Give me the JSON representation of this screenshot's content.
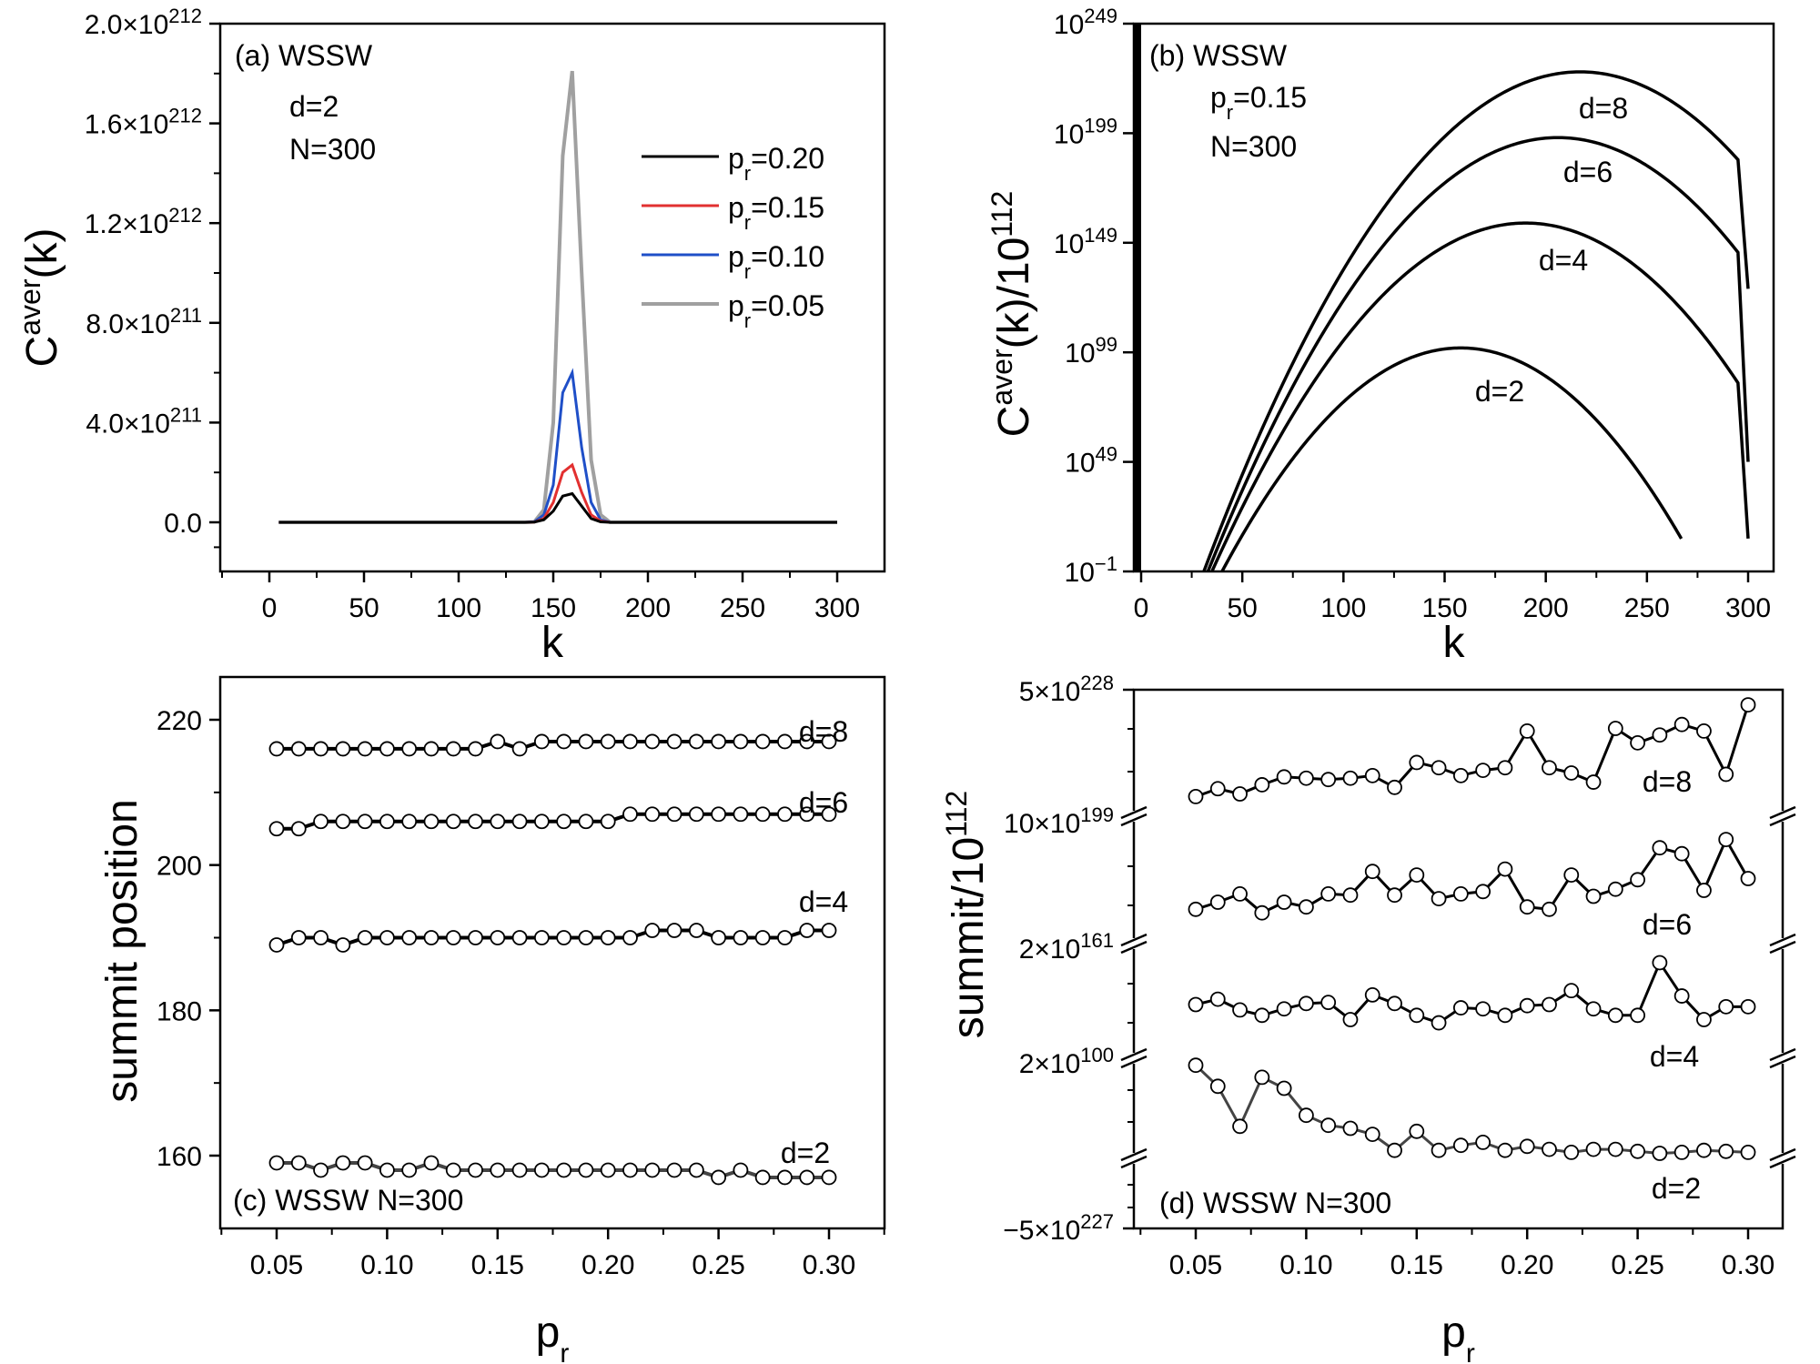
{
  "chart_data": [
    {
      "id": "a",
      "type": "line",
      "panel_label": "(a) WSSW",
      "annotations": [
        "d=2",
        "N=300"
      ],
      "xlabel": "k",
      "ylabel_main": "C",
      "ylabel_sup": "aver",
      "ylabel_tail": "(k)",
      "xlim": [
        -22,
        325
      ],
      "ylim": [
        -2e+211,
        2e+212
      ],
      "x_ticks": [
        0,
        50,
        100,
        150,
        200,
        250,
        300
      ],
      "y_ticks": [
        {
          "value": 0,
          "mantissa": "0.0",
          "exp": ""
        },
        {
          "value": 4e+211,
          "mantissa": "4.0×10",
          "exp": "211"
        },
        {
          "value": 8e+211,
          "mantissa": "8.0×10",
          "exp": "211"
        },
        {
          "value": 1.2e+212,
          "mantissa": "1.2×10",
          "exp": "212"
        },
        {
          "value": 1.6e+212,
          "mantissa": "1.6×10",
          "exp": "212"
        },
        {
          "value": 2e+212,
          "mantissa": "2.0×10",
          "exp": "212"
        }
      ],
      "legend_position": "top-right",
      "series": [
        {
          "name": "p_r=0.05",
          "legend_main": "p",
          "legend_sub": "r",
          "legend_tail": "=0.05",
          "color": "#a0a0a0",
          "x": [
            5,
            135,
            140,
            145,
            150,
            155,
            160,
            165,
            170,
            175,
            180,
            300
          ],
          "y": [
            0,
            0,
            2e+209,
            5e+210,
            4e+211,
            1.47e+212,
            1.81e+212,
            1e+212,
            2.5e+211,
            3e+210,
            0,
            0
          ]
        },
        {
          "name": "p_r=0.10",
          "legend_main": "p",
          "legend_sub": "r",
          "legend_tail": "=0.10",
          "color": "#1f4fc8",
          "x": [
            5,
            135,
            140,
            145,
            150,
            155,
            160,
            165,
            170,
            175,
            180,
            300
          ],
          "y": [
            0,
            0,
            2e+209,
            3e+210,
            1.5e+211,
            5.2e+211,
            6e+211,
            3e+211,
            8e+210,
            1e+210,
            0,
            0
          ]
        },
        {
          "name": "p_r=0.15",
          "legend_main": "p",
          "legend_sub": "r",
          "legend_tail": "=0.15",
          "color": "#e23030",
          "x": [
            5,
            135,
            140,
            145,
            150,
            155,
            160,
            165,
            170,
            175,
            180,
            300
          ],
          "y": [
            0,
            0,
            1e+209,
            1.5e+210,
            8e+210,
            2e+211,
            2.3e+211,
            1.2e+211,
            3e+210,
            5e+209,
            0,
            0
          ]
        },
        {
          "name": "p_r=0.20",
          "legend_main": "p",
          "legend_sub": "r",
          "legend_tail": "=0.20",
          "color": "#000000",
          "x": [
            5,
            135,
            140,
            145,
            150,
            155,
            160,
            165,
            170,
            175,
            180,
            300
          ],
          "y": [
            0,
            0,
            1e+209,
            1e+210,
            4.5e+210,
            1.05e+211,
            1.15e+211,
            6.5e+210,
            1.5e+210,
            2e+209,
            0,
            0
          ]
        }
      ]
    },
    {
      "id": "b",
      "type": "line",
      "scale": "log",
      "panel_label": "(b) WSSW",
      "annotations": [
        {
          "main": "p",
          "sub": "r",
          "tail": "=0.15"
        },
        "N=300"
      ],
      "xlabel": "k",
      "ylabel_main": "C",
      "ylabel_sup": "aver",
      "ylabel_tail": "(k)/10",
      "ylabel_sup2": "112",
      "xlim": [
        -3,
        325
      ],
      "ylim_log10": [
        -1,
        249
      ],
      "x_ticks": [
        0,
        50,
        100,
        150,
        200,
        250,
        300
      ],
      "y_ticks": [
        {
          "log10": -1,
          "exp": "−1"
        },
        {
          "log10": 49,
          "exp": "49"
        },
        {
          "log10": 99,
          "exp": "99"
        },
        {
          "log10": 149,
          "exp": "149"
        },
        {
          "log10": 199,
          "exp": "199"
        },
        {
          "log10": 249,
          "exp": "249"
        }
      ],
      "series": [
        {
          "name": "d=8",
          "label": "d=8",
          "peak_k": 217,
          "peak_log10": 227,
          "start_k": 31,
          "end_k": 300,
          "end_log10": 128,
          "knee_k": 295,
          "knee_log10": 163
        },
        {
          "name": "d=6",
          "label": "d=6",
          "peak_k": 206,
          "peak_log10": 197,
          "start_k": 33,
          "end_k": 300,
          "end_log10": 49,
          "knee_k": 295,
          "knee_log10": 125
        },
        {
          "name": "d=4",
          "label": "d=4",
          "peak_k": 190,
          "peak_log10": 158,
          "start_k": 35,
          "end_k": 300,
          "end_log10": 14,
          "knee_k": 295,
          "knee_log10": 60
        },
        {
          "name": "d=2",
          "label": "d=2",
          "peak_k": 158,
          "peak_log10": 101,
          "start_k": 40,
          "end_k": 267,
          "end_log10": -1
        }
      ]
    },
    {
      "id": "c",
      "type": "line",
      "panel_label": "(c) WSSW N=300",
      "xlabel_main": "p",
      "xlabel_sub": "r",
      "ylabel": "summit position",
      "xlim": [
        0.025,
        0.325
      ],
      "ylim": [
        151,
        225
      ],
      "x_ticks": [
        "0.05",
        "0.10",
        "0.15",
        "0.20",
        "0.25",
        "0.30"
      ],
      "y_ticks": [
        160,
        180,
        200,
        220
      ],
      "x": [
        0.05,
        0.06,
        0.07,
        0.08,
        0.09,
        0.1,
        0.11,
        0.12,
        0.13,
        0.14,
        0.15,
        0.16,
        0.17,
        0.18,
        0.19,
        0.2,
        0.21,
        0.22,
        0.23,
        0.24,
        0.25,
        0.26,
        0.27,
        0.28,
        0.29,
        0.3
      ],
      "series": [
        {
          "name": "d=8",
          "label": "d=8",
          "values": [
            216,
            216,
            216,
            216,
            216,
            216,
            216,
            216,
            216,
            216,
            217,
            216,
            217,
            217,
            217,
            217,
            217,
            217,
            217,
            217,
            217,
            217,
            217,
            217,
            217,
            217
          ]
        },
        {
          "name": "d=6",
          "label": "d=6",
          "values": [
            205,
            205,
            206,
            206,
            206,
            206,
            206,
            206,
            206,
            206,
            206,
            206,
            206,
            206,
            206,
            206,
            207,
            207,
            207,
            207,
            207,
            207,
            207,
            207,
            207,
            207
          ]
        },
        {
          "name": "d=4",
          "label": "d=4",
          "values": [
            189,
            190,
            190,
            189,
            190,
            190,
            190,
            190,
            190,
            190,
            190,
            190,
            190,
            190,
            190,
            190,
            190,
            191,
            191,
            191,
            190,
            190,
            190,
            190,
            191,
            191
          ]
        },
        {
          "name": "d=2",
          "label": "d=2",
          "values": [
            159,
            159,
            158,
            159,
            159,
            158,
            158,
            159,
            158,
            158,
            158,
            158,
            158,
            158,
            158,
            158,
            158,
            158,
            158,
            158,
            157,
            158,
            157,
            157,
            157,
            157
          ]
        }
      ]
    },
    {
      "id": "d",
      "type": "line",
      "axis": "broken",
      "panel_label": "(d) WSSW N=300",
      "xlabel_main": "p",
      "xlabel_sub": "r",
      "ylabel_main": "summit/10",
      "ylabel_sup": "112",
      "xlim": [
        0.025,
        0.325
      ],
      "x_ticks": [
        "0.05",
        "0.10",
        "0.15",
        "0.20",
        "0.25",
        "0.30"
      ],
      "y_ticks": [
        {
          "mantissa": "5×10",
          "exp": "228"
        },
        {
          "mantissa": "10×10",
          "exp": "199"
        },
        {
          "mantissa": "2×10",
          "exp": "161"
        },
        {
          "mantissa": "2×10",
          "exp": "100"
        },
        {
          "mantissa": "−5×10",
          "exp": "227"
        }
      ],
      "value_units": "relative level within each broken-axis segment (0 = segment bottom, 1 = segment top)",
      "x": [
        0.05,
        0.06,
        0.07,
        0.08,
        0.09,
        0.1,
        0.11,
        0.12,
        0.13,
        0.14,
        0.15,
        0.16,
        0.17,
        0.18,
        0.19,
        0.2,
        0.21,
        0.22,
        0.23,
        0.24,
        0.25,
        0.26,
        0.27,
        0.28,
        0.29,
        0.3
      ],
      "series": [
        {
          "name": "d=8",
          "label": "d=8",
          "values": [
            0.15,
            0.21,
            0.17,
            0.24,
            0.3,
            0.29,
            0.28,
            0.29,
            0.31,
            0.22,
            0.41,
            0.37,
            0.31,
            0.35,
            0.37,
            0.65,
            0.37,
            0.33,
            0.26,
            0.67,
            0.56,
            0.62,
            0.7,
            0.65,
            0.32,
            0.85
          ]
        },
        {
          "name": "d=6",
          "label": "d=6",
          "values": [
            0.29,
            0.35,
            0.42,
            0.26,
            0.35,
            0.31,
            0.42,
            0.41,
            0.61,
            0.41,
            0.58,
            0.38,
            0.42,
            0.44,
            0.63,
            0.31,
            0.29,
            0.58,
            0.4,
            0.46,
            0.54,
            0.81,
            0.76,
            0.45,
            0.88,
            0.55
          ]
        },
        {
          "name": "d=4",
          "label": "d=4",
          "values": [
            0.5,
            0.55,
            0.45,
            0.4,
            0.46,
            0.51,
            0.52,
            0.36,
            0.59,
            0.51,
            0.4,
            0.33,
            0.47,
            0.46,
            0.4,
            0.49,
            0.5,
            0.63,
            0.46,
            0.4,
            0.4,
            0.89,
            0.58,
            0.36,
            0.48,
            0.48
          ]
        },
        {
          "name": "d=2",
          "label": "d=2",
          "values": [
            0.93,
            0.72,
            0.32,
            0.81,
            0.7,
            0.43,
            0.33,
            0.3,
            0.24,
            0.08,
            0.27,
            0.08,
            0.13,
            0.16,
            0.08,
            0.12,
            0.09,
            0.06,
            0.09,
            0.09,
            0.07,
            0.05,
            0.06,
            0.08,
            0.07,
            0.06
          ]
        }
      ]
    }
  ]
}
